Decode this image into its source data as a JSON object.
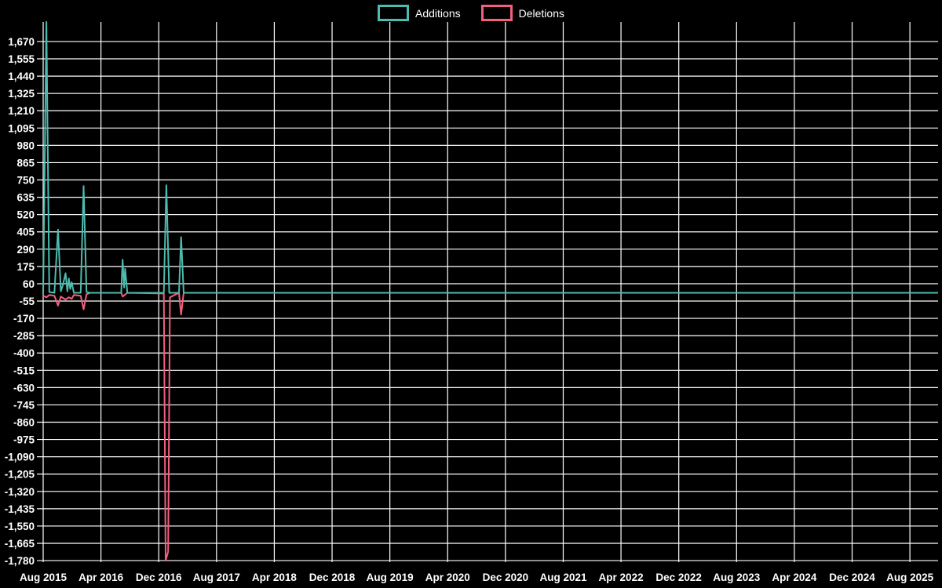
{
  "legend": {
    "additions_label": "Additions",
    "deletions_label": "Deletions"
  },
  "chart_data": {
    "type": "line",
    "title": "",
    "xlabel": "",
    "ylabel": "",
    "background_color": "#000000",
    "grid": true,
    "grid_color": "#ffffff",
    "text_color": "#ffffff",
    "legend_position": "top-center",
    "x_unit": "months since Aug 2015",
    "x_domain_months": [
      0,
      123.9
    ],
    "y_domain": [
      -1790,
      1800
    ],
    "y_ticks": [
      {
        "v": 1670,
        "label": "1,670"
      },
      {
        "v": 1555,
        "label": "1,555"
      },
      {
        "v": 1440,
        "label": "1,440"
      },
      {
        "v": 1325,
        "label": "1,325"
      },
      {
        "v": 1210,
        "label": "1,210"
      },
      {
        "v": 1095,
        "label": "1,095"
      },
      {
        "v": 980,
        "label": "980"
      },
      {
        "v": 865,
        "label": "865"
      },
      {
        "v": 750,
        "label": "750"
      },
      {
        "v": 635,
        "label": "635"
      },
      {
        "v": 520,
        "label": "520"
      },
      {
        "v": 405,
        "label": "405"
      },
      {
        "v": 290,
        "label": "290"
      },
      {
        "v": 175,
        "label": "175"
      },
      {
        "v": 60,
        "label": "60"
      },
      {
        "v": -55,
        "label": "-55"
      },
      {
        "v": -170,
        "label": "-170"
      },
      {
        "v": -285,
        "label": "-285"
      },
      {
        "v": -400,
        "label": "-400"
      },
      {
        "v": -515,
        "label": "-515"
      },
      {
        "v": -630,
        "label": "-630"
      },
      {
        "v": -745,
        "label": "-745"
      },
      {
        "v": -860,
        "label": "-860"
      },
      {
        "v": -975,
        "label": "-975"
      },
      {
        "v": -1090,
        "label": "-1,090"
      },
      {
        "v": -1205,
        "label": "-1,205"
      },
      {
        "v": -1320,
        "label": "-1,320"
      },
      {
        "v": -1435,
        "label": "-1,435"
      },
      {
        "v": -1550,
        "label": "-1,550"
      },
      {
        "v": -1665,
        "label": "-1,665"
      },
      {
        "v": -1780,
        "label": "-1,780"
      }
    ],
    "x_ticks": [
      {
        "month": 0,
        "label": "Aug 2015"
      },
      {
        "month": 8,
        "label": "Apr 2016"
      },
      {
        "month": 16,
        "label": "Dec 2016"
      },
      {
        "month": 24,
        "label": "Aug 2017"
      },
      {
        "month": 32,
        "label": "Apr 2018"
      },
      {
        "month": 40,
        "label": "Dec 2018"
      },
      {
        "month": 48,
        "label": "Aug 2019"
      },
      {
        "month": 56,
        "label": "Apr 2020"
      },
      {
        "month": 64,
        "label": "Dec 2020"
      },
      {
        "month": 72,
        "label": "Aug 2021"
      },
      {
        "month": 80,
        "label": "Apr 2022"
      },
      {
        "month": 88,
        "label": "Dec 2022"
      },
      {
        "month": 96,
        "label": "Aug 2023"
      },
      {
        "month": 104,
        "label": "Apr 2024"
      },
      {
        "month": 112,
        "label": "Dec 2024"
      },
      {
        "month": 120,
        "label": "Aug 2025"
      }
    ],
    "series": [
      {
        "name": "Deletions",
        "color": "#F2607F",
        "points": [
          [
            0,
            -20
          ],
          [
            0.45,
            -30
          ],
          [
            0.85,
            -15
          ],
          [
            1.55,
            -20
          ],
          [
            2.05,
            -85
          ],
          [
            2.45,
            -25
          ],
          [
            3.1,
            -45
          ],
          [
            3.55,
            -30
          ],
          [
            3.95,
            -40
          ],
          [
            4.25,
            -15
          ],
          [
            5.2,
            -20
          ],
          [
            5.6,
            -110
          ],
          [
            6.0,
            -10
          ],
          [
            6.5,
            0
          ],
          [
            10.8,
            0
          ],
          [
            11.0,
            -25
          ],
          [
            11.65,
            0
          ],
          [
            16.7,
            -5
          ],
          [
            16.95,
            -1780
          ],
          [
            17.3,
            -1720
          ],
          [
            17.55,
            -30
          ],
          [
            18.8,
            0
          ],
          [
            19.1,
            -145
          ],
          [
            19.45,
            0
          ],
          [
            123.9,
            0
          ]
        ]
      },
      {
        "name": "Additions",
        "color": "#4DBBAF",
        "points": [
          [
            0,
            0
          ],
          [
            0.45,
            1800
          ],
          [
            0.85,
            5
          ],
          [
            1.55,
            0
          ],
          [
            2.05,
            420
          ],
          [
            2.45,
            10
          ],
          [
            2.75,
            55
          ],
          [
            3.1,
            130
          ],
          [
            3.35,
            10
          ],
          [
            3.55,
            95
          ],
          [
            3.75,
            25
          ],
          [
            3.95,
            70
          ],
          [
            4.25,
            0
          ],
          [
            5.2,
            0
          ],
          [
            5.6,
            710
          ],
          [
            6.0,
            5
          ],
          [
            6.5,
            0
          ],
          [
            10.8,
            0
          ],
          [
            11.0,
            220
          ],
          [
            11.2,
            35
          ],
          [
            11.35,
            160
          ],
          [
            11.65,
            0
          ],
          [
            16.7,
            0
          ],
          [
            17.05,
            715
          ],
          [
            17.45,
            0
          ],
          [
            18.8,
            0
          ],
          [
            19.1,
            370
          ],
          [
            19.45,
            0
          ],
          [
            123.9,
            0
          ]
        ]
      }
    ]
  }
}
